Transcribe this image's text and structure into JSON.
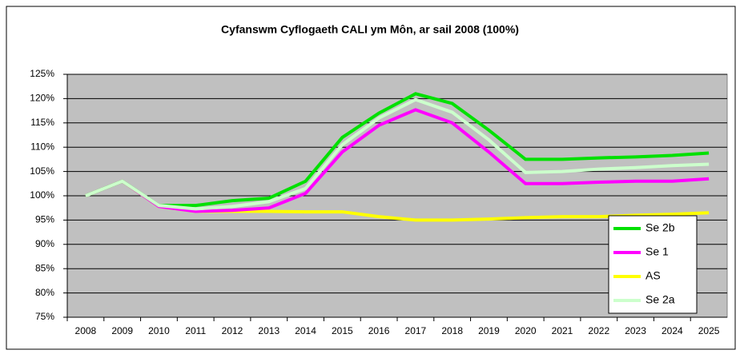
{
  "chart_data": {
    "type": "line",
    "title": "Cyfanswm Cyflogaeth CALI ym Môn, ar sail 2008 (100%)",
    "categories": [
      "2008",
      "2009",
      "2010",
      "2011",
      "2012",
      "2013",
      "2014",
      "2015",
      "2016",
      "2017",
      "2018",
      "2019",
      "2020",
      "2021",
      "2022",
      "2023",
      "2024",
      "2025"
    ],
    "series": [
      {
        "name": "Se 2b",
        "color": "#00e000",
        "values": [
          100,
          103,
          98,
          98,
          99,
          99.5,
          103,
          112,
          117,
          121,
          119,
          113.5,
          107.5,
          107.5,
          107.8,
          108,
          108.3,
          108.8
        ]
      },
      {
        "name": "Se 1",
        "color": "#ff00ff",
        "values": [
          100,
          103,
          97.8,
          96.8,
          97,
          97.5,
          100.5,
          109,
          114.5,
          117.7,
          115,
          109,
          102.5,
          102.5,
          102.8,
          103,
          103,
          103.5
        ]
      },
      {
        "name": "AS",
        "color": "#ffff00",
        "values": [
          100,
          103,
          97.8,
          96.8,
          96.8,
          96.8,
          96.7,
          96.7,
          95.7,
          95,
          95,
          95.2,
          95.5,
          95.7,
          95.7,
          96,
          96.2,
          96.5
        ]
      },
      {
        "name": "Se 2a",
        "color": "#ccffcc",
        "values": [
          100,
          103,
          98,
          97.3,
          97.8,
          98.8,
          101.5,
          110.5,
          116,
          119.8,
          117.2,
          111.5,
          104.8,
          105,
          105.5,
          105.8,
          106.2,
          106.5
        ]
      }
    ],
    "ylim": [
      75,
      125
    ],
    "yticks": [
      {
        "value": 75,
        "label": "75%"
      },
      {
        "value": 80,
        "label": "80%"
      },
      {
        "value": 85,
        "label": "85%"
      },
      {
        "value": 90,
        "label": "90%"
      },
      {
        "value": 95,
        "label": "95%"
      },
      {
        "value": 100,
        "label": "100%"
      },
      {
        "value": 105,
        "label": "105%"
      },
      {
        "value": 110,
        "label": "110%"
      },
      {
        "value": 115,
        "label": "115%"
      },
      {
        "value": 120,
        "label": "120%"
      },
      {
        "value": 125,
        "label": "125%"
      }
    ],
    "grid": true,
    "plot_background": "#c0c0c0",
    "legend": "lower right"
  }
}
